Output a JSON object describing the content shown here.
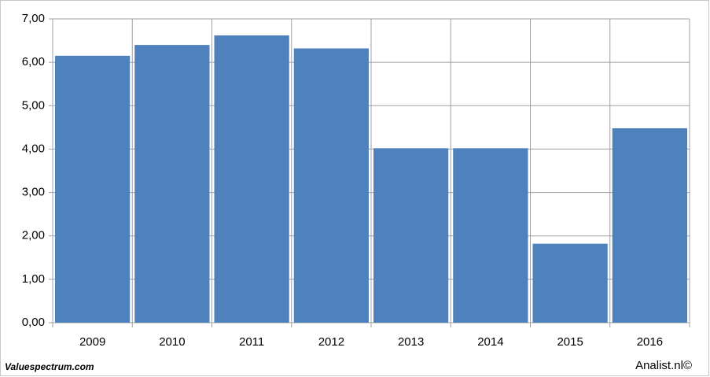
{
  "chart_data": {
    "type": "bar",
    "categories": [
      "2009",
      "2010",
      "2011",
      "2012",
      "2013",
      "2014",
      "2015",
      "2016"
    ],
    "values": [
      6.15,
      6.4,
      6.62,
      6.32,
      4.02,
      4.02,
      1.82,
      4.48
    ],
    "color": "#4f81bd",
    "ylim": [
      0,
      7
    ],
    "yticks": [
      {
        "value": 0,
        "label": "0,00"
      },
      {
        "value": 1,
        "label": "1,00"
      },
      {
        "value": 2,
        "label": "2,00"
      },
      {
        "value": 3,
        "label": "3,00"
      },
      {
        "value": 4,
        "label": "4,00"
      },
      {
        "value": 5,
        "label": "5,00"
      },
      {
        "value": 6,
        "label": "6,00"
      },
      {
        "value": 7,
        "label": "7,00"
      }
    ],
    "grid": true
  },
  "footer": {
    "left": "Valuespectrum.com",
    "right": "Analist.nl©"
  }
}
